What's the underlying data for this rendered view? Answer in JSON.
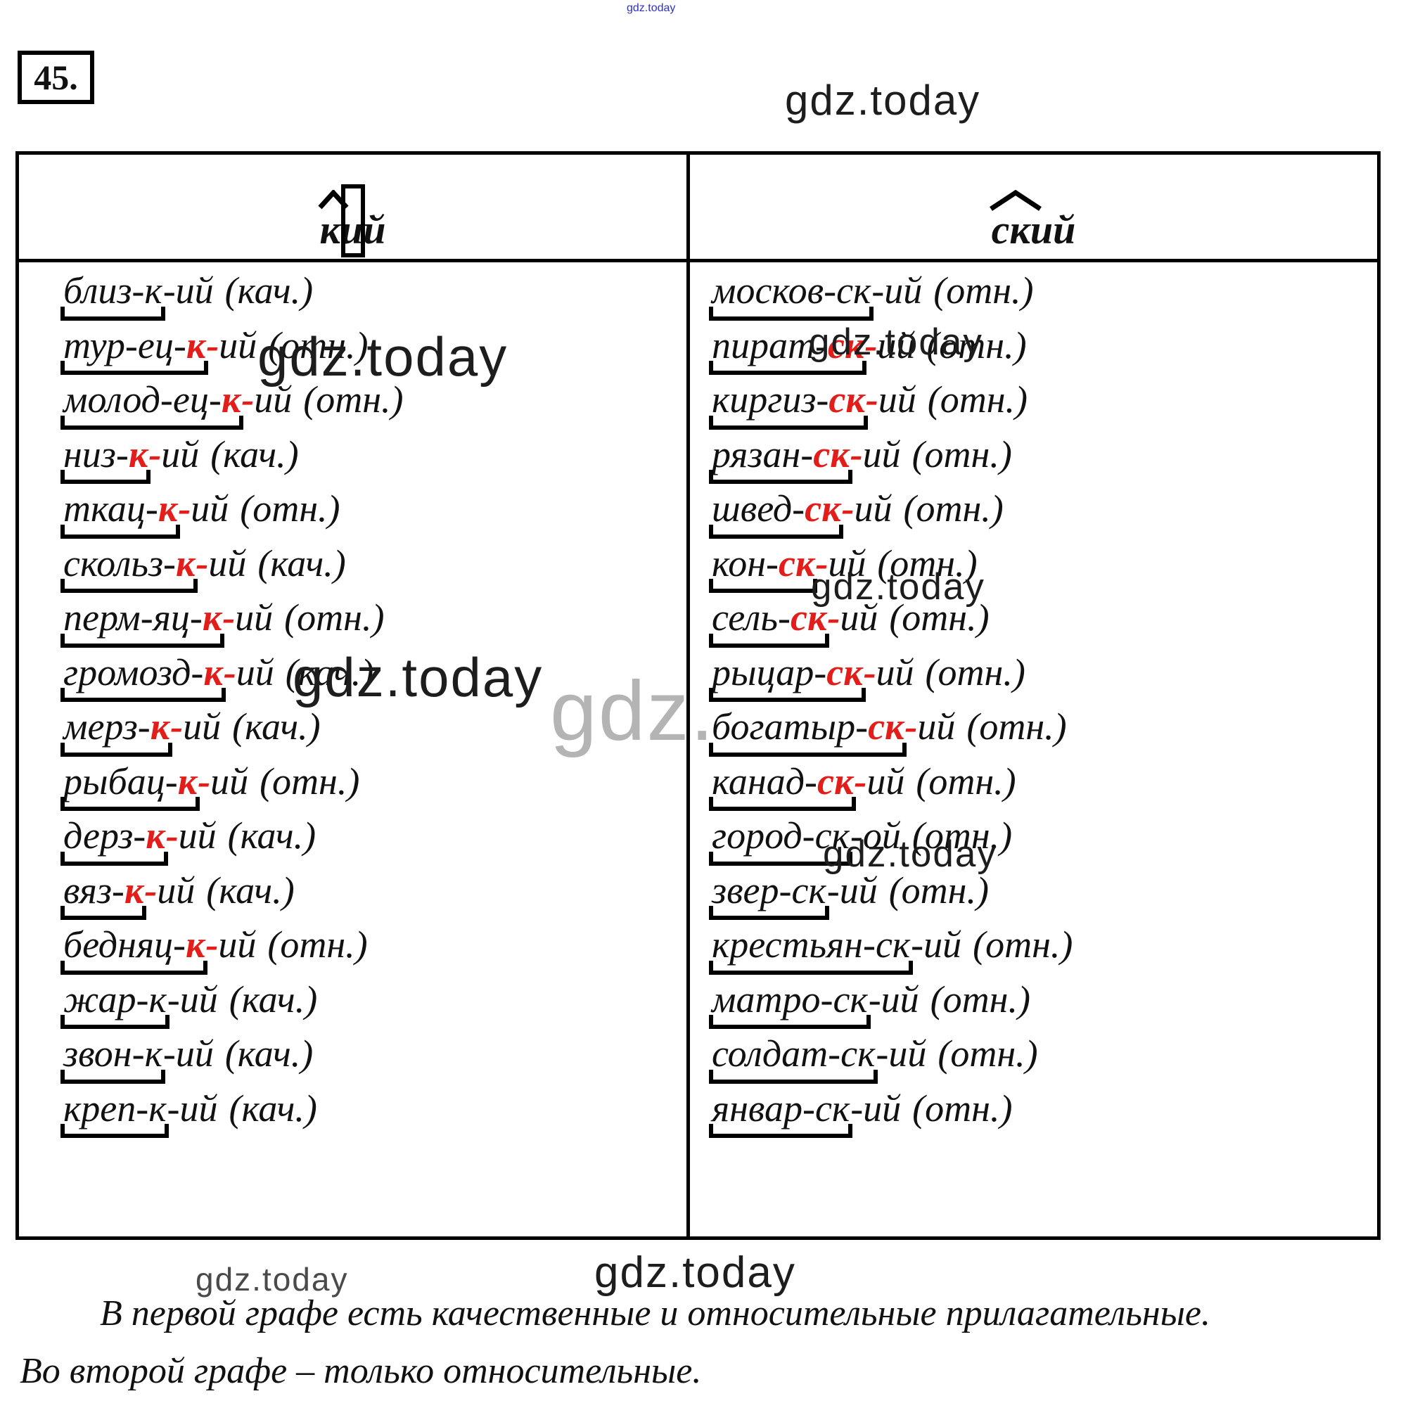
{
  "exercise": {
    "number": "45."
  },
  "colors": {
    "suffix_red": "#e31e1a"
  },
  "watermarks": {
    "top_small": "gdz.today",
    "top_right": "gdz.today",
    "mid_left_1": "gdz.today",
    "mid_right_1": "gdz.today",
    "mid_right_2": "gdz.today",
    "mid_left_2": "gdz.today",
    "gray_overlay": "gdz.",
    "mid_right_3": "gdz.today",
    "bottom_left": "gdz.today",
    "bottom_center": "gdz.today"
  },
  "table": {
    "header_left": {
      "first": "к",
      "rest": "ий"
    },
    "header_right": {
      "first": "ск",
      "rest": "ий"
    },
    "rows": [
      {
        "l": {
          "stem": "близ-",
          "suffix": "к",
          "red": false,
          "end": "ий",
          "type": "(кач.)"
        },
        "r": {
          "stem": "москов-",
          "suffix": "ск",
          "red": false,
          "end": "ий",
          "type": "(отн.)"
        }
      },
      {
        "l": {
          "stem": "тур-ец-",
          "suffix": "к",
          "red": true,
          "end": "ий",
          "type": "(отн.)"
        },
        "r": {
          "stem": "пират-",
          "suffix": "ск",
          "red": true,
          "end": "ий",
          "type": "(отн.)"
        }
      },
      {
        "l": {
          "stem": "молод-ец-",
          "suffix": "к",
          "red": true,
          "end": "ий",
          "type": "(отн.)"
        },
        "r": {
          "stem": "киргиз-",
          "suffix": "ск",
          "red": true,
          "end": "ий",
          "type": "(отн.)"
        }
      },
      {
        "l": {
          "stem": "низ-",
          "suffix": "к",
          "red": true,
          "end": "ий",
          "type": "(кач.)"
        },
        "r": {
          "stem": "рязан-",
          "suffix": "ск",
          "red": true,
          "end": "ий",
          "type": "(отн.)"
        }
      },
      {
        "l": {
          "stem": "ткац-",
          "suffix": "к",
          "red": true,
          "end": "ий",
          "type": "(отн.)"
        },
        "r": {
          "stem": "швед-",
          "suffix": "ск",
          "red": true,
          "end": "ий",
          "type": "(отн.)"
        }
      },
      {
        "l": {
          "stem": "скольз-",
          "suffix": "к",
          "red": true,
          "end": "ий",
          "type": "(кач.)"
        },
        "r": {
          "stem": "кон-",
          "suffix": "ск",
          "red": true,
          "end": "ий",
          "type": "(отн.)"
        }
      },
      {
        "l": {
          "stem": "перм-яц-",
          "suffix": "к",
          "red": true,
          "end": "ий",
          "type": "(отн.)"
        },
        "r": {
          "stem": "сель-",
          "suffix": "ск",
          "red": true,
          "end": "ий",
          "type": "(отн.)"
        }
      },
      {
        "l": {
          "stem": "громозд-",
          "suffix": "к",
          "red": true,
          "end": "ий",
          "type": "(кач.)"
        },
        "r": {
          "stem": "рыцар-",
          "suffix": "ск",
          "red": true,
          "end": "ий",
          "type": "(отн.)"
        }
      },
      {
        "l": {
          "stem": "мерз-",
          "suffix": "к",
          "red": true,
          "end": "ий",
          "type": "(кач.)"
        },
        "r": {
          "stem": "богатыр-",
          "suffix": "ск",
          "red": true,
          "end": "ий",
          "type": "(отн.)"
        }
      },
      {
        "l": {
          "stem": "рыбац-",
          "suffix": "к",
          "red": true,
          "end": "ий",
          "type": "(отн.)"
        },
        "r": {
          "stem": "канад-",
          "suffix": "ск",
          "red": true,
          "end": "ий",
          "type": "(отн.)"
        }
      },
      {
        "l": {
          "stem": "дерз-",
          "suffix": "к",
          "red": true,
          "end": "ий",
          "type": "(кач.)"
        },
        "r": {
          "stem": "город-",
          "suffix": "ск",
          "red": false,
          "end": "ой",
          "type": "(отн.)"
        }
      },
      {
        "l": {
          "stem": "вяз-",
          "suffix": "к",
          "red": true,
          "end": "ий",
          "type": "(кач.)"
        },
        "r": {
          "stem": "звер-",
          "suffix": "ск",
          "red": false,
          "end": "ий",
          "type": "(отн.)"
        }
      },
      {
        "l": {
          "stem": "бедняц-",
          "suffix": "к",
          "red": true,
          "end": "ий",
          "type": "(отн.)"
        },
        "r": {
          "stem": "крестьян-",
          "suffix": "ск",
          "red": false,
          "end": "ий",
          "type": "(отн.)"
        }
      },
      {
        "l": {
          "stem": "жар-",
          "suffix": "к",
          "red": false,
          "end": "ий",
          "type": "(кач.)"
        },
        "r": {
          "stem": "матро-",
          "suffix": "ск",
          "red": false,
          "end": "ий",
          "type": "(отн.)"
        }
      },
      {
        "l": {
          "stem": "звон-",
          "suffix": "к",
          "red": false,
          "end": "ий",
          "type": "(кач.)"
        },
        "r": {
          "stem": "солдат-",
          "suffix": "ск",
          "red": false,
          "end": "ий",
          "type": "(отн.)"
        }
      },
      {
        "l": {
          "stem": "креп-",
          "suffix": "к",
          "red": false,
          "end": "ий",
          "type": "(кач.)"
        },
        "r": {
          "stem": "январ-",
          "suffix": "ск",
          "red": false,
          "end": "ий",
          "type": "(отн.)"
        }
      }
    ]
  },
  "footer": {
    "line1": "В первой графе есть качественные и относительные прилагательные.",
    "line2": "Во второй графе – только относительные."
  }
}
